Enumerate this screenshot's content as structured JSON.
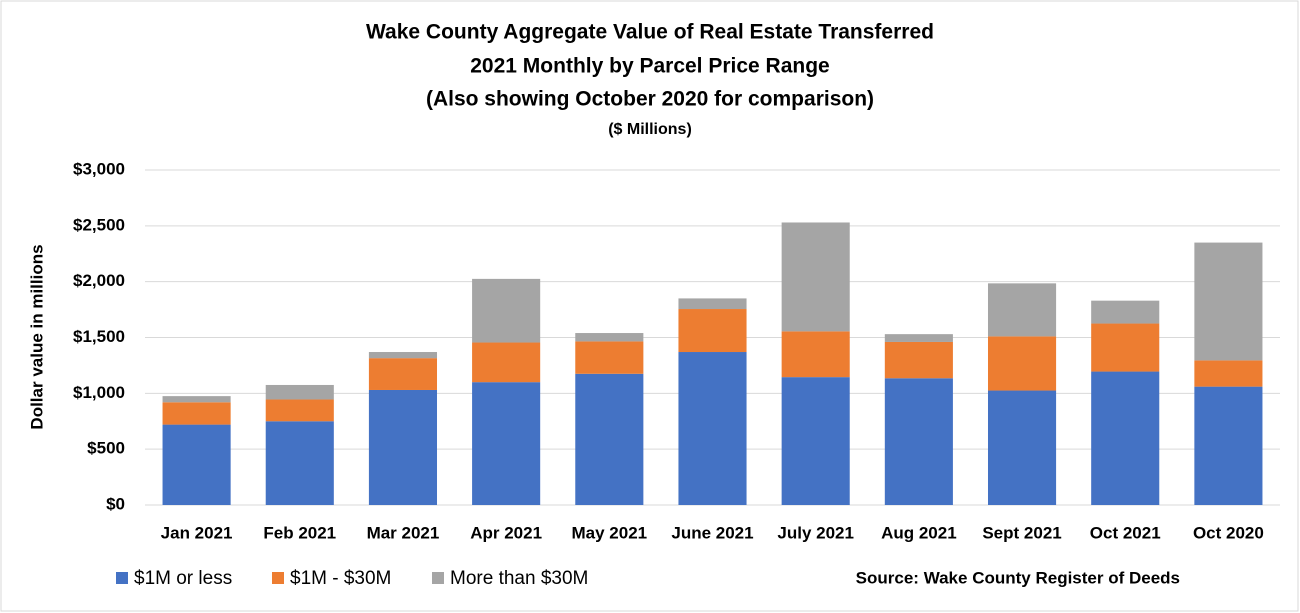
{
  "chart_data": {
    "type": "stacked_bar",
    "title": [
      "Wake County Aggregate Value of Real Estate Transferred",
      "2021 Monthly by Parcel Price Range",
      "(Also showing October 2020 for comparison)"
    ],
    "subtitle": "($ Millions)",
    "y_label": "Dollar value in millions",
    "source": "Source: Wake County Register of Deeds",
    "categories": [
      "Jan 2021",
      "Feb 2021",
      "Mar 2021",
      "Apr 2021",
      "May 2021",
      "June 2021",
      "July 2021",
      "Aug 2021",
      "Sept 2021",
      "Oct 2021",
      "Oct 2020"
    ],
    "series": [
      {
        "name": "$1M or less",
        "color": "#4472c4",
        "values": [
          720,
          750,
          1030,
          1100,
          1175,
          1370,
          1145,
          1135,
          1025,
          1195,
          1060
        ]
      },
      {
        "name": "$1M - $30M",
        "color": "#ed7d31",
        "values": [
          200,
          195,
          285,
          355,
          290,
          385,
          410,
          325,
          485,
          430,
          235
        ]
      },
      {
        "name": "More than $30M",
        "color": "#a5a5a5",
        "values": [
          55,
          130,
          55,
          570,
          75,
          95,
          975,
          70,
          475,
          205,
          1055
        ]
      }
    ],
    "ylim": [
      0,
      3000
    ],
    "yticks": [
      {
        "value": 0,
        "label": "$0"
      },
      {
        "value": 500,
        "label": "$500"
      },
      {
        "value": 1000,
        "label": "$1,000"
      },
      {
        "value": 1500,
        "label": "$1,500"
      },
      {
        "value": 2000,
        "label": "$2,000"
      },
      {
        "value": 2500,
        "label": "$2,500"
      },
      {
        "value": 3000,
        "label": "$3,000"
      }
    ],
    "grid": true,
    "legend": "bottom-left"
  }
}
